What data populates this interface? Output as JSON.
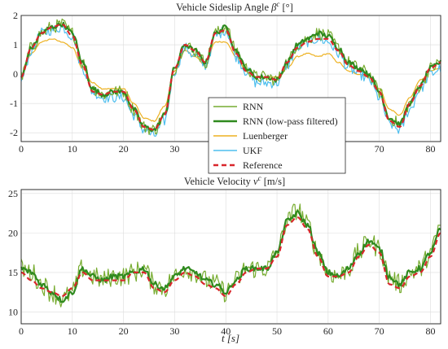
{
  "colors": {
    "rnn": "#77ac30",
    "rnn_lp": "#2f8a1e",
    "luenberger": "#edb120",
    "ukf": "#4dbeee",
    "reference": "#d9262b"
  },
  "xlabel": "t [s]",
  "chart_data": [
    {
      "type": "line",
      "title": "Vehicle Sideslip Angle β^c [°]",
      "title_main": "Vehicle Sideslip Angle ",
      "title_sym": "β",
      "title_sup": "c",
      "title_unit": " [°]",
      "xlim": [
        0,
        82
      ],
      "ylim": [
        -2.3,
        2.0
      ],
      "xticks": [
        0,
        10,
        20,
        30,
        40,
        50,
        60,
        70,
        80
      ],
      "yticks": [
        -2,
        -1,
        0,
        1,
        2
      ],
      "grid": true,
      "legend_position": "bottom-center",
      "x": [
        0,
        2,
        4,
        6,
        8,
        10,
        12,
        14,
        16,
        18,
        20,
        22,
        24,
        26,
        28,
        30,
        32,
        34,
        36,
        38,
        40,
        42,
        44,
        46,
        48,
        50,
        52,
        54,
        56,
        58,
        60,
        62,
        64,
        66,
        68,
        70,
        72,
        74,
        76,
        78,
        80,
        82
      ],
      "series": [
        {
          "name": "RNN",
          "key": "rnn",
          "noise": 0.22,
          "values": [
            -0.1,
            0.9,
            1.4,
            1.6,
            1.7,
            1.4,
            0.4,
            -0.5,
            -0.7,
            -0.6,
            -0.6,
            -1.2,
            -1.8,
            -1.9,
            -1.4,
            0.2,
            1.0,
            0.8,
            0.4,
            1.4,
            1.6,
            0.8,
            0.2,
            -0.1,
            -0.1,
            -0.2,
            0.4,
            1.0,
            1.2,
            1.4,
            1.3,
            0.9,
            0.4,
            0.2,
            0.0,
            -0.6,
            -1.5,
            -1.7,
            -1.0,
            -0.4,
            0.2,
            0.4
          ]
        },
        {
          "name": "RNN (low-pass filtered)",
          "key": "rnn_lp",
          "noise": 0.08,
          "values": [
            -0.1,
            0.9,
            1.4,
            1.6,
            1.7,
            1.4,
            0.4,
            -0.5,
            -0.7,
            -0.6,
            -0.6,
            -1.2,
            -1.8,
            -1.9,
            -1.4,
            0.2,
            1.0,
            0.8,
            0.4,
            1.4,
            1.6,
            0.8,
            0.2,
            -0.1,
            -0.1,
            -0.2,
            0.4,
            1.0,
            1.2,
            1.4,
            1.3,
            0.9,
            0.4,
            0.2,
            0.0,
            -0.6,
            -1.5,
            -1.7,
            -1.0,
            -0.4,
            0.2,
            0.4
          ]
        },
        {
          "name": "Luenberger",
          "key": "luenberger",
          "noise": 0.02,
          "values": [
            -0.1,
            0.7,
            1.1,
            1.2,
            1.1,
            0.9,
            0.2,
            -0.3,
            -0.5,
            -0.5,
            -0.5,
            -1.0,
            -1.5,
            -1.6,
            -1.1,
            0.1,
            0.8,
            0.6,
            0.3,
            1.1,
            1.1,
            0.6,
            0.1,
            -0.1,
            -0.1,
            -0.1,
            0.2,
            0.6,
            0.7,
            0.6,
            0.7,
            0.4,
            0.1,
            0.0,
            -0.1,
            -0.5,
            -1.2,
            -1.4,
            -0.8,
            -0.2,
            0.1,
            0.2
          ]
        },
        {
          "name": "UKF",
          "key": "ukf",
          "noise": 0.18,
          "values": [
            -0.2,
            0.8,
            1.4,
            1.5,
            1.6,
            1.3,
            0.2,
            -0.6,
            -0.8,
            -0.8,
            -0.8,
            -1.4,
            -1.9,
            -2.1,
            -1.6,
            0.1,
            0.9,
            0.6,
            0.3,
            1.3,
            1.5,
            0.6,
            0.1,
            -0.3,
            -0.3,
            -0.3,
            0.3,
            0.9,
            1.1,
            1.2,
            1.1,
            0.7,
            0.2,
            0.0,
            -0.2,
            -0.8,
            -1.7,
            -1.9,
            -1.2,
            -0.5,
            0.0,
            0.2
          ]
        },
        {
          "name": "Reference",
          "key": "reference",
          "noise": 0.0,
          "values": [
            -0.1,
            0.9,
            1.4,
            1.6,
            1.7,
            1.3,
            0.3,
            -0.6,
            -0.7,
            -0.6,
            -0.6,
            -1.2,
            -1.8,
            -1.9,
            -1.4,
            0.2,
            1.0,
            0.8,
            0.4,
            1.4,
            1.5,
            0.7,
            0.1,
            -0.1,
            -0.1,
            -0.2,
            0.4,
            0.9,
            1.1,
            1.2,
            1.2,
            0.8,
            0.3,
            0.1,
            -0.1,
            -0.6,
            -1.6,
            -1.8,
            -1.0,
            -0.4,
            0.2,
            0.4
          ]
        }
      ]
    },
    {
      "type": "line",
      "title": "Vehicle Velocity v^c [m/s]",
      "title_main": "Vehicle Velocity ",
      "title_sym": "v",
      "title_sup": "c",
      "title_unit": " [m/s]",
      "xlim": [
        0,
        82
      ],
      "ylim": [
        8.5,
        25.5
      ],
      "xticks": [
        0,
        10,
        20,
        30,
        40,
        50,
        60,
        70,
        80
      ],
      "yticks": [
        10,
        15,
        20,
        25
      ],
      "grid": true,
      "x": [
        0,
        2,
        4,
        6,
        8,
        10,
        12,
        14,
        16,
        18,
        20,
        22,
        24,
        26,
        28,
        30,
        32,
        34,
        36,
        38,
        40,
        42,
        44,
        46,
        48,
        50,
        52,
        54,
        56,
        58,
        60,
        62,
        64,
        66,
        68,
        70,
        72,
        74,
        76,
        78,
        80,
        82
      ],
      "series": [
        {
          "name": "RNN",
          "key": "rnn",
          "noise": 1.3,
          "values": [
            15.5,
            15.0,
            13.5,
            12.5,
            11.5,
            12.5,
            15.5,
            14.5,
            14.0,
            14.5,
            14.5,
            15.0,
            15.5,
            13.5,
            13.0,
            14.5,
            15.5,
            15.0,
            14.0,
            13.5,
            12.5,
            14.0,
            15.5,
            15.5,
            15.5,
            17.5,
            21.5,
            23.0,
            21.0,
            17.5,
            15.0,
            14.5,
            15.5,
            17.5,
            19.0,
            18.0,
            14.5,
            13.5,
            15.0,
            15.5,
            17.5,
            21.0
          ]
        },
        {
          "name": "RNN (low-pass filtered)",
          "key": "rnn_lp",
          "noise": 0.35,
          "values": [
            15.5,
            15.0,
            13.5,
            12.5,
            11.5,
            12.5,
            15.5,
            14.5,
            14.0,
            14.5,
            14.5,
            15.0,
            15.5,
            13.5,
            13.0,
            14.5,
            15.5,
            15.0,
            14.0,
            13.5,
            12.5,
            14.0,
            15.5,
            15.5,
            15.5,
            17.5,
            21.5,
            22.5,
            21.0,
            17.5,
            15.0,
            14.5,
            15.5,
            17.5,
            19.0,
            18.0,
            14.5,
            13.5,
            15.0,
            15.5,
            17.5,
            20.5
          ]
        },
        {
          "name": "Reference",
          "key": "reference",
          "noise": 0.0,
          "values": [
            15.0,
            14.0,
            13.0,
            12.5,
            12.0,
            13.0,
            15.0,
            14.0,
            14.0,
            14.0,
            14.0,
            15.0,
            15.0,
            13.0,
            12.5,
            14.0,
            15.0,
            14.5,
            13.5,
            13.0,
            12.0,
            13.5,
            15.0,
            15.5,
            15.5,
            17.0,
            21.0,
            22.0,
            20.5,
            17.0,
            14.5,
            14.5,
            15.0,
            17.0,
            18.5,
            17.5,
            13.5,
            13.0,
            14.5,
            15.0,
            17.0,
            20.0
          ]
        }
      ]
    }
  ]
}
